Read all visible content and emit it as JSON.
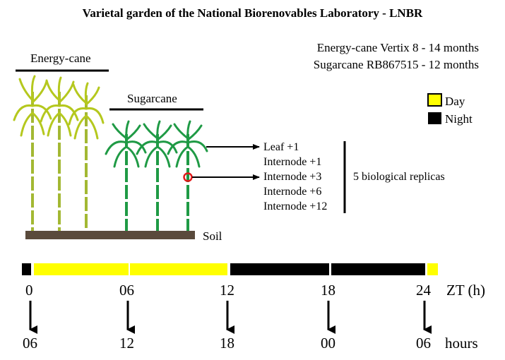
{
  "title": "Varietal garden of the National Biorenovables Laboratory - LNBR",
  "varieties": [
    {
      "text": "Energy-cane Vertix 8 - 14 months"
    },
    {
      "text": "Sugarcane RB867515 - 12 months"
    }
  ],
  "groups": {
    "energy_cane": "Energy-cane",
    "sugarcane": "Sugarcane"
  },
  "soil_label": "Soil",
  "legend": {
    "day": {
      "label": "Day",
      "color": "#ffff00"
    },
    "night": {
      "label": "Night",
      "color": "#000000"
    }
  },
  "samples": [
    "Leaf +1",
    "Internode +1",
    "Internode +3",
    "Internode +6",
    "Internode +12"
  ],
  "replicas_label": "5 biological replicas",
  "timeline": {
    "zt_unit_label": "ZT (h)",
    "hours_unit_label": "hours",
    "points": [
      {
        "zt": "0",
        "hour": "06"
      },
      {
        "zt": "06",
        "hour": "12"
      },
      {
        "zt": "12",
        "hour": "18"
      },
      {
        "zt": "18",
        "hour": "00"
      },
      {
        "zt": "24",
        "hour": "06"
      }
    ]
  },
  "colors": {
    "energy_cane": "#b5c81e",
    "energy_cane_stalk": "#a3b833",
    "sugarcane": "#1f9a45",
    "soil": "#5a4a3c",
    "marker": "#e11a1a"
  }
}
